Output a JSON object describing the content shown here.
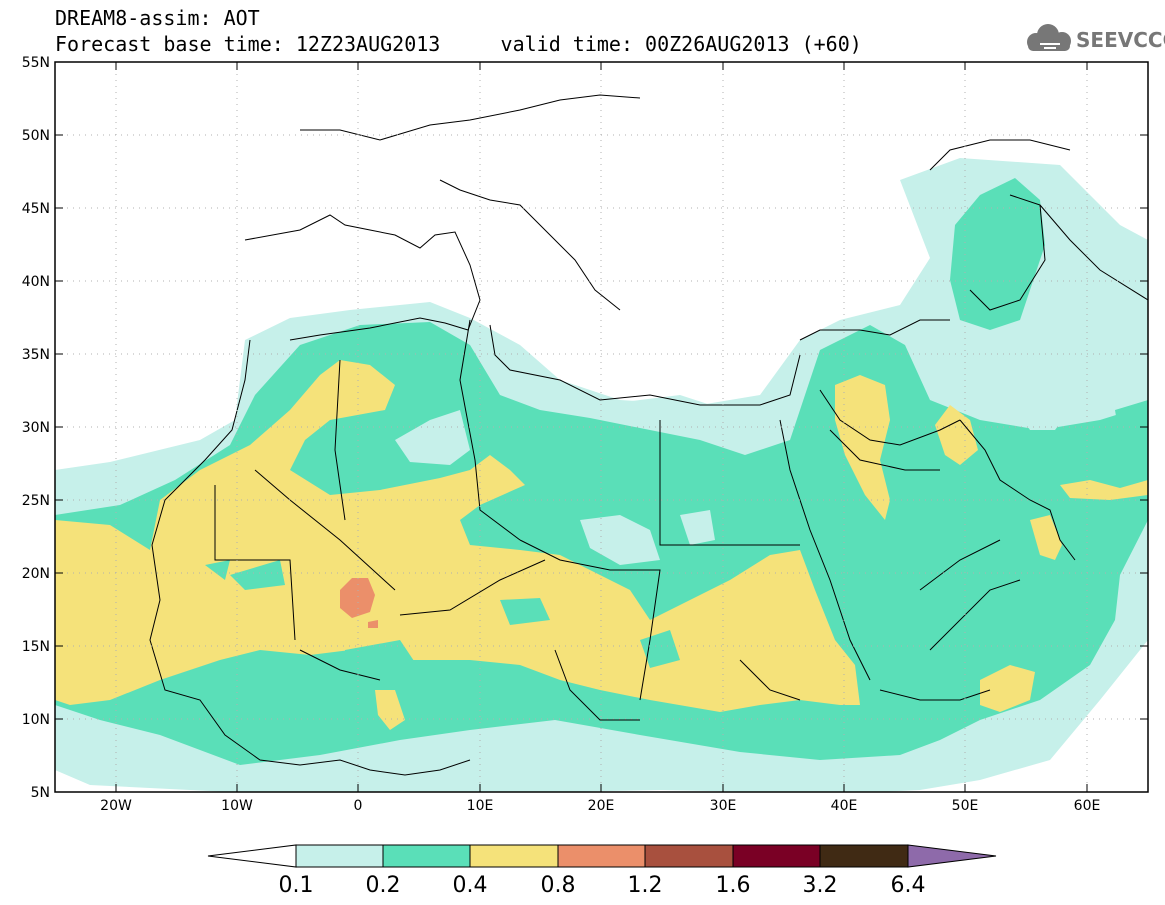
{
  "header": {
    "title": "DREAM8-assim: AOT",
    "base_label": "Forecast base time:",
    "base_time": "12Z23AUG2013",
    "valid_label": "valid time:",
    "valid_time": "00Z26AUG2013 (+60)"
  },
  "logo": {
    "text": "SEEVCCC",
    "icon": "cloud-icon"
  },
  "map": {
    "lat_labels": [
      "55N",
      "50N",
      "45N",
      "40N",
      "35N",
      "30N",
      "25N",
      "20N",
      "15N",
      "10N",
      "5N"
    ],
    "lon_labels": [
      "20W",
      "10W",
      "0",
      "10E",
      "20E",
      "30E",
      "40E",
      "50E",
      "60E"
    ],
    "lat_range": [
      5,
      55
    ],
    "lon_range": [
      -25,
      65
    ]
  },
  "colorbar": {
    "labels": [
      "0.1",
      "0.2",
      "0.4",
      "0.8",
      "1.2",
      "1.6",
      "3.2",
      "6.4"
    ],
    "colors": [
      "#ffffff",
      "#c6f0ea",
      "#5adfb8",
      "#f5e27a",
      "#eb8f6a",
      "#a8503e",
      "#7a0025",
      "#402a14",
      "#8e6aaa"
    ]
  },
  "colors": {
    "level1": "#c6f0ea",
    "level2": "#5adfb8",
    "level3": "#f5e27a",
    "level4": "#eb8f6a"
  }
}
